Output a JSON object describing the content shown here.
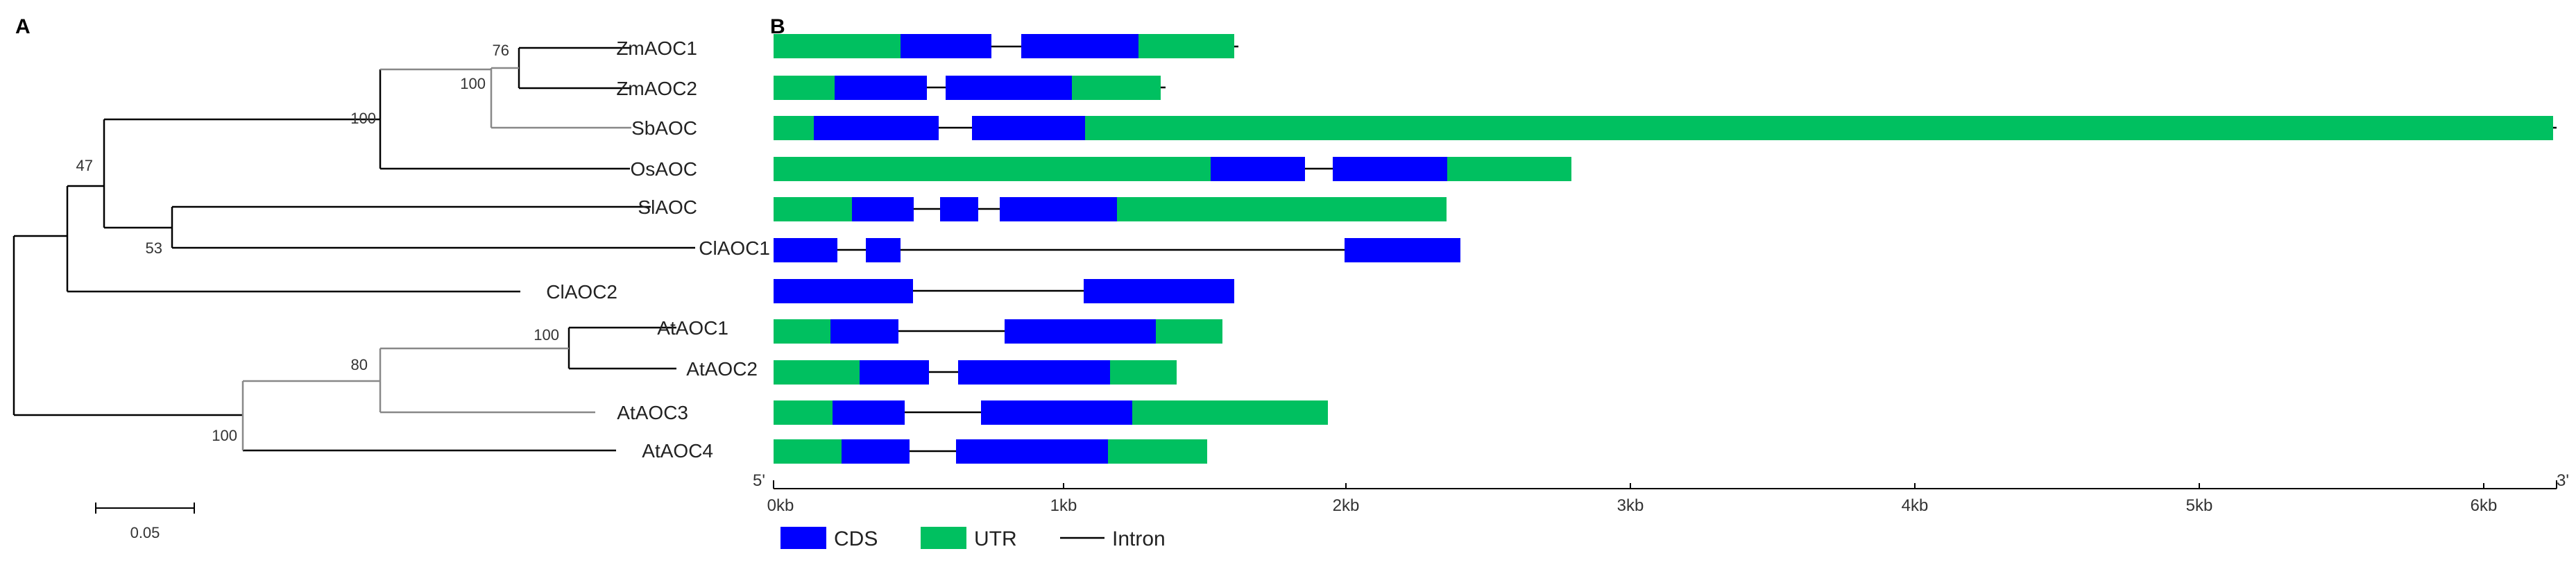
{
  "panel_a": {
    "label": "A",
    "scale_bar_label": "0.05",
    "taxa": [
      "ZmAOC1",
      "ZmAOC2",
      "SbAOC",
      "OsAOC",
      "SlAOC",
      "ClAOC1",
      "ClAOC2",
      "AtAOC1",
      "AtAOC2",
      "AtAOC3",
      "AtAOC4"
    ],
    "bootstrap": {
      "zm": "76",
      "grass": "100",
      "monocots": "100",
      "ingroup": "47",
      "sl_cl": "53",
      "at12": "100",
      "at123": "80",
      "at_all": "100"
    }
  },
  "panel_b": {
    "label": "B",
    "end_5": "5'",
    "end_3": "3'",
    "axis_ticks": [
      "0kb",
      "1kb",
      "2kb",
      "3kb",
      "4kb",
      "5kb",
      "6kb"
    ],
    "legend": {
      "cds": "CDS",
      "utr": "UTR",
      "intron": "Intron"
    },
    "colors": {
      "cds": "#0000ff",
      "utr": "#00c060",
      "intron": "#000000"
    }
  }
}
